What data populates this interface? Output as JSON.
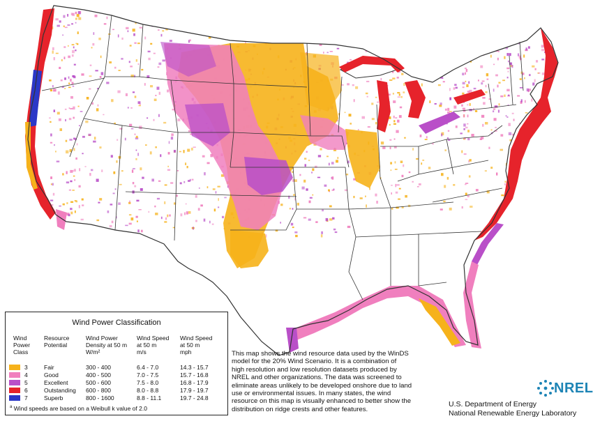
{
  "colors": {
    "class3": "#f6b21b",
    "class4": "#f07fbe",
    "class5": "#b94fc8",
    "class6": "#e6232b",
    "class7": "#2b38c7",
    "outline": "#333333",
    "nrel_blue": "#1d84b5"
  },
  "legend": {
    "title": "Wind Power Classification",
    "headers": {
      "class": [
        "Wind",
        "Power",
        "Class"
      ],
      "potential": [
        "Resource",
        "Potential"
      ],
      "density": [
        "Wind Power",
        "Density at 50 m",
        "W/m²"
      ],
      "speed_ms": [
        "Wind Speed",
        "at 50 m",
        "m/s"
      ],
      "speed_mph": [
        "Wind Speed",
        "at 50 m",
        "mph"
      ]
    },
    "rows": [
      {
        "class": "3",
        "potential": "Fair",
        "density": "300 -  400",
        "ms": "6.4 -  7.0",
        "mph": "14.3 - 15.7",
        "color": "#f6b21b"
      },
      {
        "class": "4",
        "potential": "Good",
        "density": "400 -  500",
        "ms": "7.0 -  7.5",
        "mph": "15.7 - 16.8",
        "color": "#f07fbe"
      },
      {
        "class": "5",
        "potential": "Excellent",
        "density": "500 -  600",
        "ms": "7.5 -  8.0",
        "mph": "16.8 - 17.9",
        "color": "#b94fc8"
      },
      {
        "class": "6",
        "potential": "Outstanding",
        "density": "600 -  800",
        "ms": "8.0 -  8.8",
        "mph": "17.9 - 19.7",
        "color": "#e6232b"
      },
      {
        "class": "7",
        "potential": "Superb",
        "density": "800 - 1600",
        "ms": "8.8 - 11.1",
        "mph": "19.7 - 24.8",
        "color": "#2b38c7"
      }
    ],
    "footnote": "Wind speeds are based on a Weibull k value of 2.0"
  },
  "description": [
    "This map shows the wind resource data used by the WinDS",
    "model for the 20% Wind Scenario.  It is a combination of",
    "high resolution and low resolution datasets produced by",
    "NREL and other organizations.  The data was screened to",
    "eliminate areas unlikely to be developed onshore due to land",
    "use or environmental  issues.  In many states, the wind",
    "resource on this map is visually enhanced to better show the",
    "distribution on ridge crests and other features."
  ],
  "logo": {
    "text": "NREL",
    "icon": "nrel-sunburst-icon"
  },
  "agency": [
    "U.S. Department of Energy",
    "National Renewable Energy Laboratory"
  ]
}
